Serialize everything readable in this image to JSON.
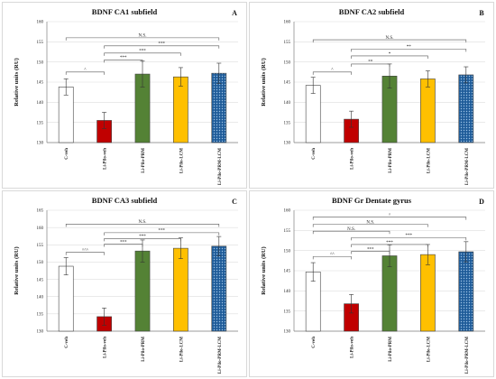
{
  "colors": {
    "frame": "#d9d9d9",
    "grid": "#dedede",
    "axis": "#7f7f7f",
    "bar_edge": "#444444",
    "bracket": "#555555"
  },
  "chart_data": [
    {
      "type": "bar",
      "title": "BDNF CA1 subfield",
      "panel_label": "A",
      "ylabel": "Relative units (RU)",
      "ylim": [
        130,
        160
      ],
      "yticks": [
        130,
        135,
        140,
        145,
        150,
        155,
        160
      ],
      "categories": [
        "C-veh",
        "Li-Pilo-veh",
        "Li-Pilo-PRM",
        "Li-Pilo-LCM",
        "Li-Pilo-PRM-LCM"
      ],
      "values": [
        143.8,
        135.5,
        147.0,
        146.3,
        147.2
      ],
      "errors": [
        2.0,
        2.0,
        3.2,
        2.3,
        2.5
      ],
      "bar_colors": [
        "#ffffff",
        "#c00000",
        "#548235",
        "#ffc000",
        "#2e75b6"
      ],
      "bar_patterns": [
        "solid",
        "solid",
        "solid",
        "solid",
        "dotted"
      ],
      "grid": true,
      "brackets": [
        {
          "from": 0,
          "to": 4,
          "label": "N.S.",
          "level": 156
        },
        {
          "from": 1,
          "to": 4,
          "label": "***",
          "level": 154
        },
        {
          "from": 1,
          "to": 3,
          "label": "***",
          "level": 152.2
        },
        {
          "from": 1,
          "to": 2,
          "label": "***",
          "level": 150.5
        },
        {
          "from": 0,
          "to": 1,
          "label": "^",
          "level": 147.5
        }
      ]
    },
    {
      "type": "bar",
      "title": "BDNF CA2 subfield",
      "panel_label": "B",
      "ylabel": "Relative units (RU)",
      "ylim": [
        130,
        160
      ],
      "yticks": [
        130,
        135,
        140,
        145,
        150,
        155,
        160
      ],
      "categories": [
        "C-veh",
        "Li-Pilo-veh",
        "Li-Pilo-PRM",
        "Li-Pilo-LCM",
        "Li-Pilo-PRM-LCM"
      ],
      "values": [
        144.2,
        135.8,
        146.5,
        145.8,
        146.8
      ],
      "errors": [
        2.0,
        2.0,
        3.0,
        2.0,
        2.0
      ],
      "bar_colors": [
        "#ffffff",
        "#c00000",
        "#548235",
        "#ffc000",
        "#2e75b6"
      ],
      "bar_patterns": [
        "solid",
        "solid",
        "solid",
        "solid",
        "dotted"
      ],
      "grid": true,
      "brackets": [
        {
          "from": 0,
          "to": 4,
          "label": "N.S.",
          "level": 155.5
        },
        {
          "from": 1,
          "to": 4,
          "label": "**",
          "level": 153.2
        },
        {
          "from": 1,
          "to": 3,
          "label": "*",
          "level": 151.5
        },
        {
          "from": 1,
          "to": 2,
          "label": "**",
          "level": 149.5
        },
        {
          "from": 0,
          "to": 1,
          "label": "^",
          "level": 147.5
        }
      ]
    },
    {
      "type": "bar",
      "title": "BDNF CA3 subfield",
      "panel_label": "C",
      "ylabel": "Relative units (RU)",
      "ylim": [
        130,
        165
      ],
      "yticks": [
        130,
        135,
        140,
        145,
        150,
        155,
        160,
        165
      ],
      "categories": [
        "C-veh",
        "Li-Pilo-veh",
        "Li-Pilo-PRM",
        "Li-Pilo-LCM",
        "Li-Pilo-PRM-LCM"
      ],
      "values": [
        148.8,
        134.2,
        153.2,
        154.0,
        154.6
      ],
      "errors": [
        2.5,
        2.5,
        3.2,
        3.0,
        2.8
      ],
      "bar_colors": [
        "#ffffff",
        "#c00000",
        "#548235",
        "#ffc000",
        "#2e75b6"
      ],
      "bar_patterns": [
        "solid",
        "solid",
        "solid",
        "solid",
        "dotted"
      ],
      "grid": true,
      "brackets": [
        {
          "from": 0,
          "to": 4,
          "label": "N.S.",
          "level": 161
        },
        {
          "from": 1,
          "to": 4,
          "label": "***",
          "level": 158.5
        },
        {
          "from": 1,
          "to": 3,
          "label": "***",
          "level": 156.8
        },
        {
          "from": 1,
          "to": 2,
          "label": "***",
          "level": 155.2
        },
        {
          "from": 0,
          "to": 1,
          "label": "^^^",
          "level": 152.8
        }
      ]
    },
    {
      "type": "bar",
      "title": "BDNF Gr Dentate gyrus",
      "panel_label": "D",
      "ylabel": "Relative units (RU)",
      "ylim": [
        130,
        160
      ],
      "yticks": [
        130,
        135,
        140,
        145,
        150,
        155,
        160
      ],
      "categories": [
        "C-veh",
        "Li-Pilo-veh",
        "Li-Pilo-PRM",
        "Li-Pilo-LCM",
        "Li-Pilo-PRM-LCM"
      ],
      "values": [
        144.7,
        136.8,
        148.7,
        149.0,
        149.7
      ],
      "errors": [
        2.3,
        2.3,
        2.7,
        2.5,
        2.5
      ],
      "bar_colors": [
        "#ffffff",
        "#c00000",
        "#548235",
        "#ffc000",
        "#2e75b6"
      ],
      "bar_patterns": [
        "solid",
        "solid",
        "solid",
        "solid",
        "dotted"
      ],
      "grid": true,
      "brackets": [
        {
          "from": 0,
          "to": 4,
          "label": "^",
          "level": 158.3
        },
        {
          "from": 0,
          "to": 3,
          "label": "N.S.",
          "level": 156.5
        },
        {
          "from": 0,
          "to": 2,
          "label": "N.S.",
          "level": 154.8
        },
        {
          "from": 1,
          "to": 4,
          "label": "***",
          "level": 153.2
        },
        {
          "from": 1,
          "to": 3,
          "label": "***",
          "level": 151.5
        },
        {
          "from": 1,
          "to": 2,
          "label": "***",
          "level": 149.8
        },
        {
          "from": 0,
          "to": 1,
          "label": "^^",
          "level": 148.5
        }
      ]
    }
  ]
}
